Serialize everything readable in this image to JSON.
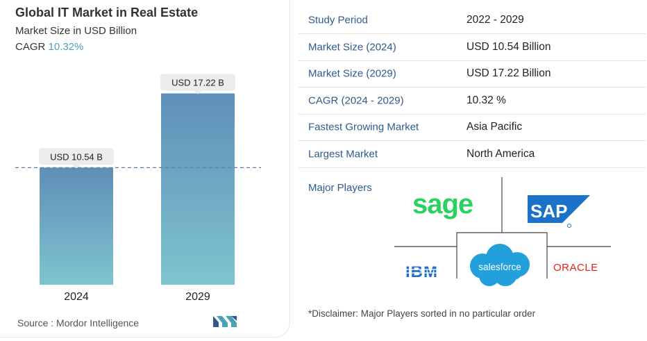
{
  "header": {
    "title": "Global IT Market in Real Estate",
    "subtitle": "Market Size in USD Billion",
    "cagr_label": "CAGR",
    "cagr_value": "10.32%"
  },
  "chart_data": {
    "type": "bar",
    "categories": [
      "2024",
      "2029"
    ],
    "values": [
      10.54,
      17.22
    ],
    "data_labels": [
      "USD 10.54 B",
      "USD 17.22 B"
    ],
    "title": "Global IT Market in Real Estate",
    "ylabel": "Market Size in USD Billion",
    "ylim": [
      0,
      18.5
    ],
    "grid": false,
    "reference_line": 10.54,
    "colors": {
      "bar_top": "#5f8fb8",
      "bar_bottom": "#7ec4cf",
      "label_bg": "#ececec",
      "dash": "#5b7fa3"
    }
  },
  "footer": {
    "source": "Source :  Mordor Intelligence"
  },
  "summary": {
    "rows": [
      {
        "label": "Study Period",
        "value": "2022 - 2029"
      },
      {
        "label": "Market Size (2024)",
        "value": "USD 10.54 Billion"
      },
      {
        "label": "Market Size (2029)",
        "value": "USD 17.22 Billion"
      },
      {
        "label": "CAGR (2024 - 2029)",
        "value": "10.32 %"
      },
      {
        "label": "Fastest Growing Market",
        "value": "Asia Pacific"
      },
      {
        "label": "Largest Market",
        "value": "North America"
      }
    ],
    "players_label": "Major Players",
    "players": {
      "sage": "sage",
      "sap": "SAP",
      "ibm": "IBM",
      "salesforce": "salesforce",
      "oracle": "ORACLE"
    },
    "disclaimer": "*Disclaimer: Major Players sorted in no particular order"
  },
  "colors": {
    "label_blue": "#2e5b8c",
    "accent_teal": "#4aa3b5",
    "sage_green": "#2bd160",
    "sap_blue": "#1a73c9",
    "ibm_blue": "#1f70c1",
    "salesforce_blue": "#21a0db",
    "oracle_red": "#e2231a"
  }
}
